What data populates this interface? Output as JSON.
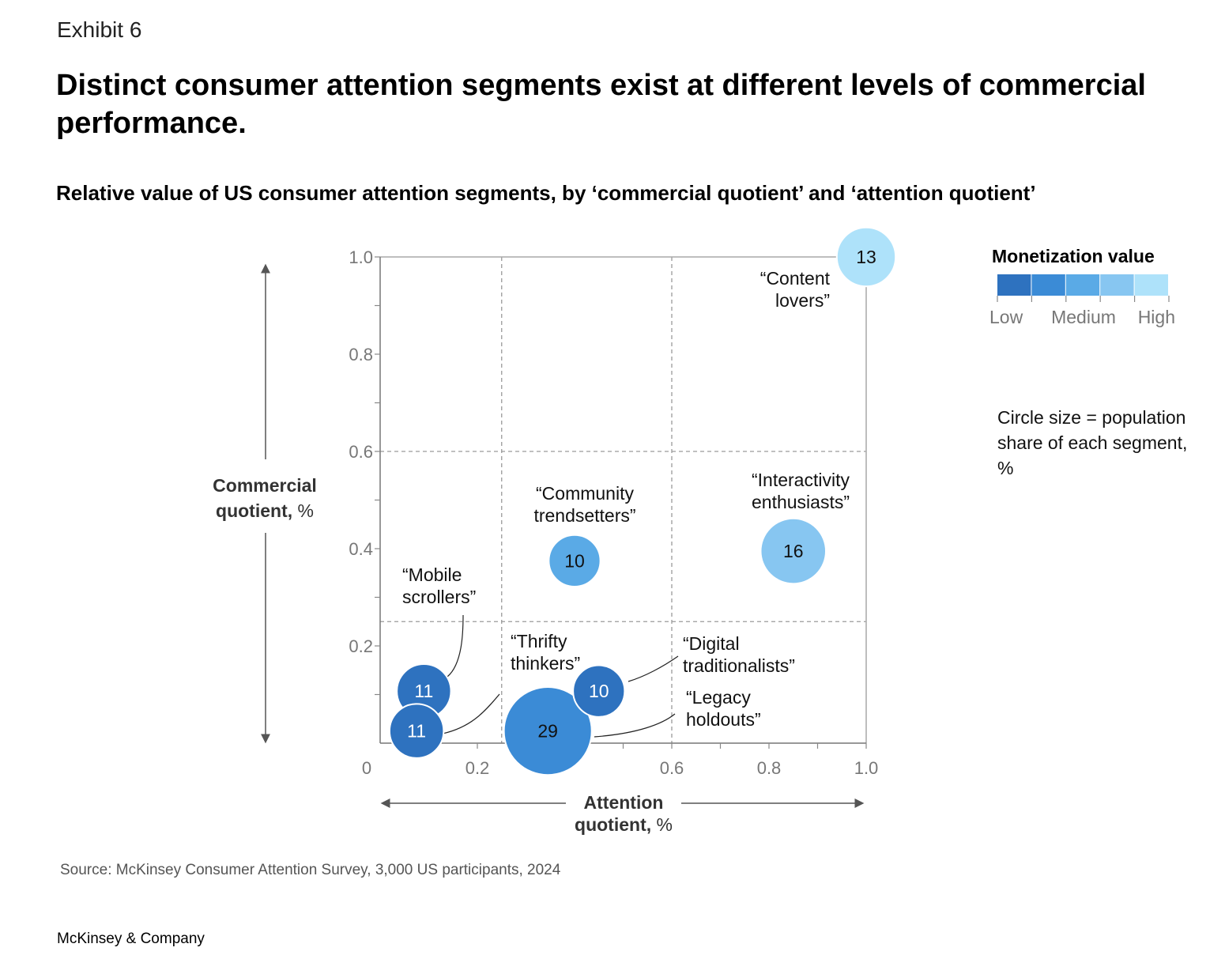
{
  "exhibit": "Exhibit 6",
  "title": "Distinct consumer attention segments exist at different levels of commercial performance.",
  "subtitle": "Relative value of US consumer attention segments, by ‘commercial quotient’ and ‘attention quotient’",
  "legend": {
    "title": "Monetization value",
    "colors": [
      "#2e72bf",
      "#3b8bd6",
      "#5aaae6",
      "#87c6f1",
      "#aee2fa"
    ],
    "labels": [
      "Low",
      "Medium",
      "High"
    ],
    "size_note": "Circle size = population share of each segment, %"
  },
  "source": "Source: McKinsey Consumer Attention Survey, 3,000 US participants, 2024",
  "brand": "McKinsey & Company",
  "chart_data": {
    "type": "scatter",
    "xlabel_bold": "Attention quotient,",
    "xlabel_unit": " %",
    "ylabel_bold_1": "Commercial",
    "ylabel_bold_2": "quotient,",
    "ylabel_unit": " %",
    "xlim": [
      0,
      1.0
    ],
    "ylim": [
      0,
      1.0
    ],
    "x_ticks": [
      "0",
      "0.2",
      "0.6",
      "0.8",
      "1.0"
    ],
    "x_tick_values": [
      0,
      0.2,
      0.6,
      0.8,
      1.0
    ],
    "y_ticks": [
      "0.2",
      "0.4",
      "0.6",
      "0.8",
      "1.0"
    ],
    "y_tick_values": [
      0.2,
      0.4,
      0.6,
      0.8,
      1.0
    ],
    "thresholds": {
      "x": [
        0.25,
        0.6
      ],
      "y": [
        0.25,
        0.6
      ]
    },
    "grid": false,
    "legend_position": "top-right",
    "points": [
      {
        "name": "“Content lovers”",
        "label_lines": [
          "“Content",
          "lovers”"
        ],
        "x": 1.0,
        "y": 1.0,
        "share": 13,
        "monetization": 5
      },
      {
        "name": "“Interactivity enthusiasts”",
        "label_lines": [
          "“Interactivity",
          "enthusiasts”"
        ],
        "x": 0.85,
        "y": 0.395,
        "share": 16,
        "monetization": 4
      },
      {
        "name": "“Community trendsetters”",
        "label_lines": [
          "“Community",
          "trendsetters”"
        ],
        "x": 0.4,
        "y": 0.375,
        "share": 10,
        "monetization": 3
      },
      {
        "name": "“Mobile scrollers”",
        "label_lines": [
          "“Mobile",
          "scrollers”"
        ],
        "x": 0.09,
        "y": 0.107,
        "share": 11,
        "monetization": 1
      },
      {
        "name": "“Thrifty thinkers”",
        "label_lines": [
          "“Thrifty",
          "thinkers”"
        ],
        "x": 0.075,
        "y": 0.025,
        "share": 11,
        "monetization": 1
      },
      {
        "name": "“Digital traditionalists”",
        "label_lines": [
          "“Digital",
          "traditionalists”"
        ],
        "x": 0.45,
        "y": 0.107,
        "share": 10,
        "monetization": 1
      },
      {
        "name": "“Legacy holdouts”",
        "label_lines": [
          "“Legacy",
          "holdouts”"
        ],
        "x": 0.345,
        "y": 0.025,
        "share": 29,
        "monetization": 2
      }
    ]
  }
}
